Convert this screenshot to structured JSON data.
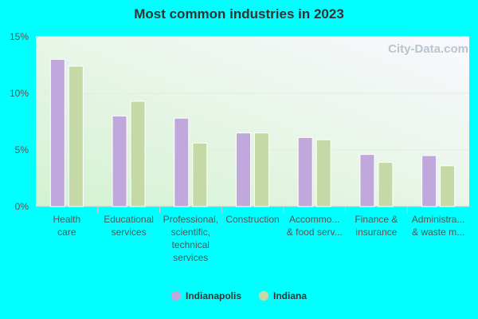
{
  "chart_data": {
    "type": "bar",
    "title": "Most common industries in 2023",
    "categories": [
      [
        "Health",
        "care"
      ],
      [
        "Educational",
        "services"
      ],
      [
        "Professional,",
        "scientific,",
        "technical",
        "services"
      ],
      [
        "Construction"
      ],
      [
        "Accommo...",
        "& food serv..."
      ],
      [
        "Finance &",
        "insurance"
      ],
      [
        "Administra...",
        "& waste m..."
      ]
    ],
    "series": [
      {
        "name": "Indianapolis",
        "color": "#c0a8dc",
        "values": [
          13.0,
          8.0,
          7.8,
          6.5,
          6.1,
          4.6,
          4.5
        ]
      },
      {
        "name": "Indiana",
        "color": "#c5d9a6",
        "values": [
          12.4,
          9.3,
          5.6,
          6.5,
          5.9,
          3.9,
          3.6
        ]
      }
    ],
    "yticks": [
      "0%",
      "5%",
      "10%",
      "15%"
    ],
    "ylim": [
      0,
      15
    ],
    "watermark": "City-Data.com"
  }
}
